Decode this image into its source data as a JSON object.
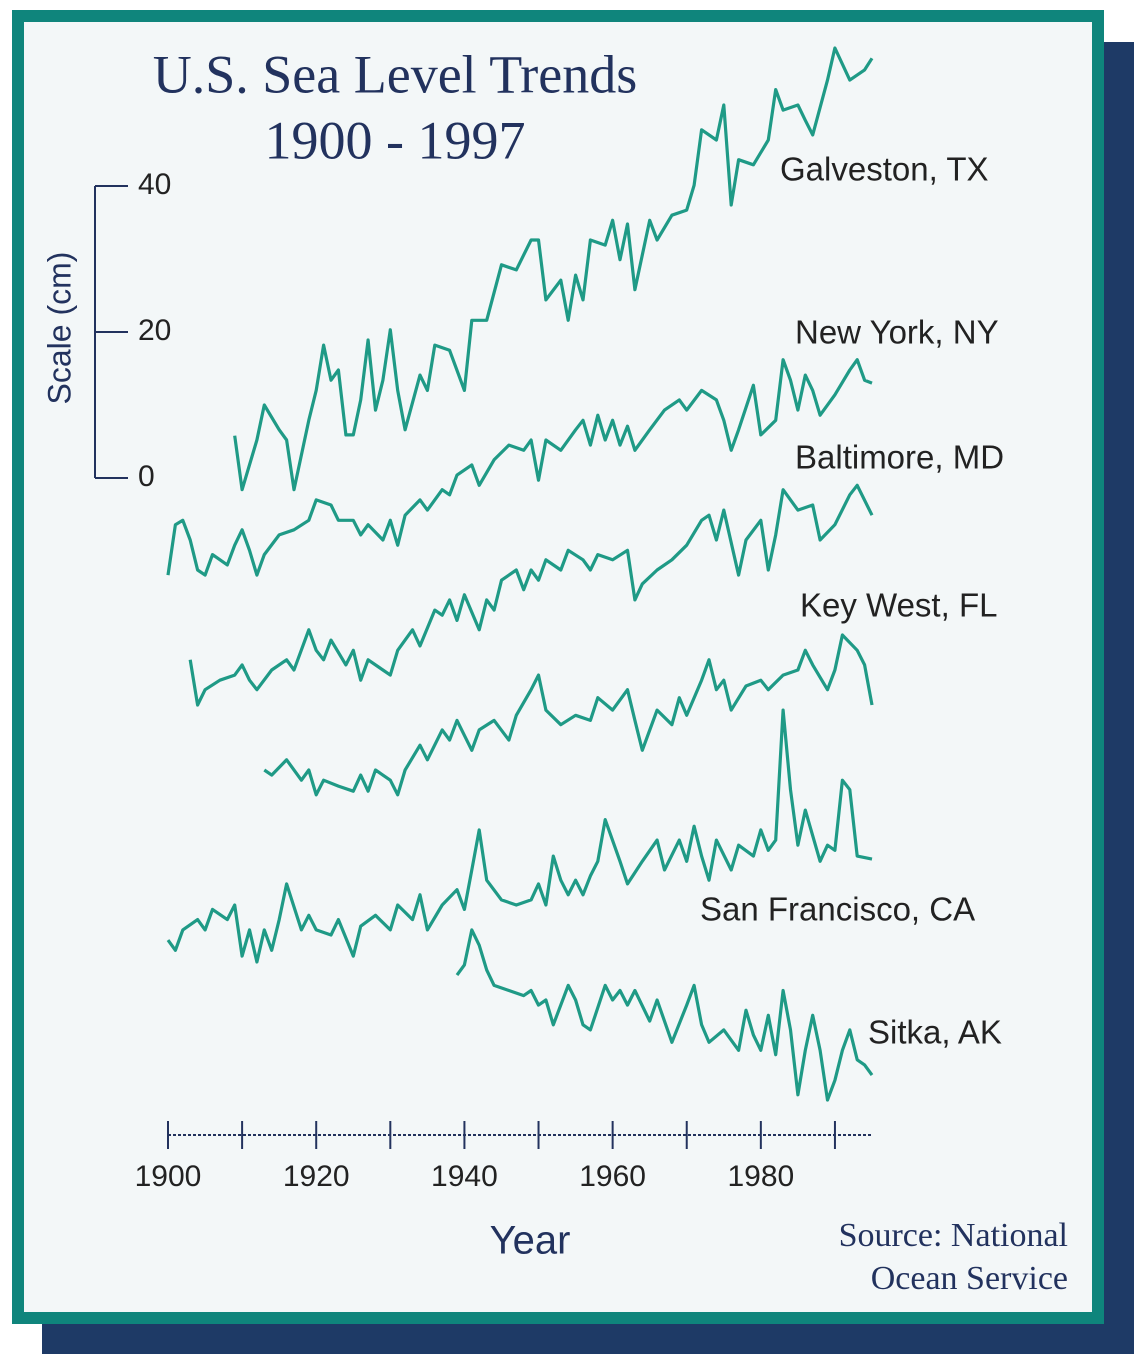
{
  "chart_data": {
    "type": "line",
    "title": "U.S. Sea Level Trends",
    "subtitle": "1900 - 1997",
    "xlabel": "Year",
    "ylabel": "Scale (cm)",
    "source": [
      "Source: National",
      "Ocean Service"
    ],
    "xlim": [
      1900,
      1995
    ],
    "xticks": [
      1900,
      1920,
      1940,
      1960,
      1980
    ],
    "xminor_ticks": [
      1910,
      1930,
      1950,
      1970,
      1990
    ],
    "ylim": [
      -90,
      60
    ],
    "yticks": [
      0,
      20,
      40
    ],
    "series": [
      {
        "name": "Galveston, TX",
        "color": "#1f9a86",
        "x": [
          1909,
          1910,
          1912,
          1913,
          1915,
          1916,
          1917,
          1919,
          1920,
          1921,
          1922,
          1923,
          1924,
          1925,
          1926,
          1927,
          1928,
          1929,
          1930,
          1931,
          1932,
          1934,
          1935,
          1936,
          1938,
          1940,
          1941,
          1943,
          1945,
          1947,
          1949,
          1950,
          1951,
          1953,
          1954,
          1955,
          1956,
          1957,
          1959,
          1960,
          1961,
          1962,
          1963,
          1965,
          1966,
          1968,
          1970,
          1971,
          1972,
          1974,
          1975,
          1976,
          1977,
          1979,
          1981,
          1982,
          1983,
          1985,
          1986,
          1987,
          1989,
          1990,
          1992,
          1994,
          1995
        ],
        "values": [
          5.8,
          -1.6,
          5.2,
          10,
          6.6,
          5.2,
          -1.6,
          7.9,
          12,
          18.2,
          13.4,
          14.8,
          5.9,
          5.9,
          10.7,
          18.9,
          9.3,
          13.4,
          20.3,
          12,
          6.6,
          14.1,
          12,
          18.2,
          17.5,
          12,
          21.6,
          21.6,
          29.2,
          28.5,
          32.6,
          32.6,
          24.4,
          27.1,
          21.6,
          27.8,
          24.4,
          32.6,
          31.9,
          35.3,
          29.9,
          34.8,
          25.8,
          35.3,
          32.6,
          36,
          36.7,
          40.1,
          47.7,
          46.3,
          51.1,
          37.4,
          43.6,
          42.9,
          46.3,
          53.2,
          50.4,
          51.1,
          49,
          47,
          54.5,
          58.9,
          54.5,
          55.9,
          57.5
        ]
      },
      {
        "name": "New York, NY",
        "color": "#1f9a86",
        "x": [
          1900,
          1901,
          1902,
          1903,
          1904,
          1905,
          1906,
          1908,
          1909,
          1910,
          1911,
          1912,
          1913,
          1915,
          1917,
          1919,
          1920,
          1922,
          1923,
          1925,
          1926,
          1927,
          1929,
          1930,
          1931,
          1932,
          1934,
          1935,
          1937,
          1938,
          1939,
          1941,
          1942,
          1944,
          1946,
          1948,
          1949,
          1950,
          1951,
          1953,
          1955,
          1956,
          1957,
          1958,
          1959,
          1960,
          1961,
          1962,
          1963,
          1965,
          1967,
          1969,
          1970,
          1972,
          1974,
          1975,
          1976,
          1977,
          1979,
          1980,
          1982,
          1983,
          1984,
          1985,
          1986,
          1987,
          1988,
          1990,
          1992,
          1993,
          1994,
          1995
        ],
        "values": [
          -13.3,
          -6.4,
          -5.8,
          -8.5,
          -12.6,
          -13.3,
          -10.5,
          -11.9,
          -9.2,
          -7.1,
          -9.9,
          -13.3,
          -10.5,
          -7.8,
          -7.1,
          -5.8,
          -3,
          -3.7,
          -5.8,
          -5.8,
          -7.8,
          -6.4,
          -8.5,
          -5.8,
          -9.2,
          -5.1,
          -3,
          -4.4,
          -1.6,
          -2.3,
          0.4,
          1.8,
          -1,
          2.5,
          4.5,
          3.8,
          5.2,
          -0.3,
          5.2,
          3.8,
          6.6,
          7.9,
          4.5,
          8.6,
          5.2,
          7.9,
          4.5,
          7.1,
          3.8,
          6.6,
          9.3,
          10.7,
          9.3,
          12,
          10.7,
          7.9,
          3.8,
          6.6,
          12.7,
          5.9,
          7.9,
          16.2,
          13.4,
          9.3,
          14.1,
          12,
          8.6,
          11.4,
          14.8,
          16.2,
          13.4,
          13
        ]
      },
      {
        "name": "Baltimore, MD",
        "color": "#1f9a86",
        "x": [
          1903,
          1904,
          1905,
          1907,
          1909,
          1910,
          1911,
          1912,
          1914,
          1916,
          1917,
          1919,
          1920,
          1921,
          1922,
          1924,
          1925,
          1926,
          1927,
          1929,
          1930,
          1931,
          1933,
          1934,
          1936,
          1937,
          1938,
          1939,
          1940,
          1942,
          1943,
          1944,
          1945,
          1947,
          1948,
          1949,
          1950,
          1951,
          1953,
          1954,
          1956,
          1957,
          1958,
          1960,
          1962,
          1963,
          1964,
          1966,
          1968,
          1970,
          1972,
          1973,
          1974,
          1975,
          1977,
          1978,
          1980,
          1981,
          1982,
          1983,
          1985,
          1987,
          1988,
          1990,
          1992,
          1993,
          1995
        ],
        "values": [
          -24.9,
          -31.1,
          -29,
          -27.7,
          -27,
          -25.6,
          -27.7,
          -29,
          -26.3,
          -24.9,
          -26.3,
          -20.8,
          -23.6,
          -24.9,
          -22.2,
          -25.6,
          -23.6,
          -27.7,
          -24.9,
          -26.3,
          -27,
          -23.6,
          -20.8,
          -23,
          -18.1,
          -18.8,
          -16.7,
          -19.5,
          -16,
          -20.8,
          -16.7,
          -18.1,
          -14,
          -12.6,
          -15.3,
          -12.6,
          -14,
          -11.2,
          -12.6,
          -9.9,
          -11.2,
          -12.6,
          -10.5,
          -11.2,
          -9.9,
          -16.7,
          -14.5,
          -12.6,
          -11.2,
          -9.2,
          -5.8,
          -5.1,
          -8.5,
          -4.4,
          -13.3,
          -8.5,
          -5.8,
          -12.6,
          -7.8,
          -1.6,
          -4.4,
          -3.7,
          -8.5,
          -6.4,
          -2.3,
          -1,
          -5.1
        ]
      },
      {
        "name": "Key West, FL",
        "color": "#1f9a86",
        "x": [
          1913,
          1914,
          1916,
          1918,
          1919,
          1920,
          1921,
          1923,
          1925,
          1926,
          1927,
          1928,
          1930,
          1931,
          1932,
          1934,
          1935,
          1937,
          1938,
          1939,
          1941,
          1942,
          1944,
          1946,
          1947,
          1949,
          1950,
          1951,
          1953,
          1955,
          1957,
          1958,
          1960,
          1962,
          1963,
          1964,
          1966,
          1968,
          1969,
          1970,
          1972,
          1973,
          1974,
          1975,
          1976,
          1978,
          1980,
          1981,
          1983,
          1985,
          1986,
          1987,
          1989,
          1990,
          1991,
          1993,
          1994,
          1995
        ],
        "values": [
          -40,
          -40.7,
          -38.6,
          -41.4,
          -40,
          -43.4,
          -41.4,
          -42.2,
          -42.9,
          -40.7,
          -42.9,
          -40,
          -41.4,
          -43.4,
          -40,
          -36.6,
          -38.6,
          -34.5,
          -35.9,
          -33.2,
          -37.3,
          -34.5,
          -33.2,
          -35.9,
          -32.5,
          -29,
          -27,
          -31.8,
          -33.8,
          -32.5,
          -33.2,
          -30.1,
          -31.8,
          -29,
          -33.2,
          -37.3,
          -31.8,
          -33.8,
          -30.1,
          -32.5,
          -27.7,
          -24.9,
          -29,
          -27.7,
          -31.8,
          -28.5,
          -27.7,
          -29,
          -27,
          -26.3,
          -23.6,
          -25.6,
          -29,
          -26.3,
          -21.5,
          -23.6,
          -25.6,
          -31.1
        ]
      },
      {
        "name": "San Francisco, CA",
        "color": "#1f9a86",
        "x": [
          1900,
          1901,
          1902,
          1904,
          1905,
          1906,
          1908,
          1909,
          1910,
          1911,
          1912,
          1913,
          1914,
          1915,
          1916,
          1918,
          1919,
          1920,
          1922,
          1923,
          1925,
          1926,
          1928,
          1930,
          1931,
          1933,
          1934,
          1935,
          1937,
          1939,
          1940,
          1941,
          1942,
          1943,
          1945,
          1947,
          1949,
          1950,
          1951,
          1952,
          1953,
          1954,
          1955,
          1956,
          1957,
          1958,
          1959,
          1961,
          1962,
          1964,
          1966,
          1967,
          1969,
          1970,
          1971,
          1972,
          1973,
          1974,
          1976,
          1977,
          1979,
          1980,
          1981,
          1982,
          1983,
          1984,
          1985,
          1986,
          1988,
          1989,
          1990,
          1991,
          1992,
          1993,
          1995
        ],
        "values": [
          -63.3,
          -64.7,
          -61.9,
          -60.5,
          -61.9,
          -59.1,
          -60.5,
          -58.5,
          -65.5,
          -61.9,
          -66.3,
          -61.9,
          -64.7,
          -60.5,
          -55.6,
          -61.9,
          -59.9,
          -61.9,
          -62.6,
          -60.5,
          -65.5,
          -61.4,
          -59.9,
          -61.9,
          -58.5,
          -60.5,
          -57.1,
          -61.9,
          -58.5,
          -56.4,
          -59.1,
          -53.7,
          -48.2,
          -55.1,
          -57.8,
          -58.5,
          -57.8,
          -55.6,
          -58.5,
          -51.8,
          -55.1,
          -57.1,
          -55.1,
          -57.1,
          -54.5,
          -52.5,
          -46.8,
          -52.5,
          -55.6,
          -52.5,
          -49.6,
          -53.7,
          -49.6,
          -52.5,
          -47.7,
          -51.8,
          -55.1,
          -49.6,
          -53.7,
          -50.3,
          -51.8,
          -48.2,
          -51,
          -49.6,
          -31.8,
          -42.7,
          -50.3,
          -45.5,
          -52.5,
          -50.3,
          -51,
          -41.4,
          -42.7,
          -51.8,
          -52.2
        ]
      },
      {
        "name": "Sitka, AK",
        "color": "#1f9a86",
        "x": [
          1939,
          1940,
          1941,
          1942,
          1943,
          1944,
          1946,
          1948,
          1949,
          1950,
          1951,
          1952,
          1954,
          1955,
          1956,
          1957,
          1959,
          1960,
          1961,
          1962,
          1963,
          1965,
          1966,
          1968,
          1970,
          1971,
          1972,
          1973,
          1975,
          1977,
          1978,
          1979,
          1980,
          1981,
          1982,
          1983,
          1984,
          1985,
          1986,
          1987,
          1988,
          1989,
          1990,
          1991,
          1992,
          1993,
          1994,
          1995
        ],
        "values": [
          -68.1,
          -66.7,
          -61.9,
          -64,
          -67.4,
          -69.5,
          -70.2,
          -70.9,
          -70.2,
          -72.2,
          -71.5,
          -74.9,
          -69.5,
          -71.5,
          -74.9,
          -75.6,
          -69.5,
          -71.5,
          -70.2,
          -72.2,
          -70.2,
          -74.4,
          -71.5,
          -77.3,
          -72.2,
          -69.5,
          -74.9,
          -77.3,
          -75.6,
          -78.4,
          -72.9,
          -76.3,
          -78.4,
          -73.6,
          -79,
          -70.2,
          -75.6,
          -84.5,
          -78.4,
          -73.6,
          -78.4,
          -85.2,
          -82.5,
          -78.4,
          -75.6,
          -79.7,
          -80.4,
          -81.8
        ]
      }
    ]
  }
}
